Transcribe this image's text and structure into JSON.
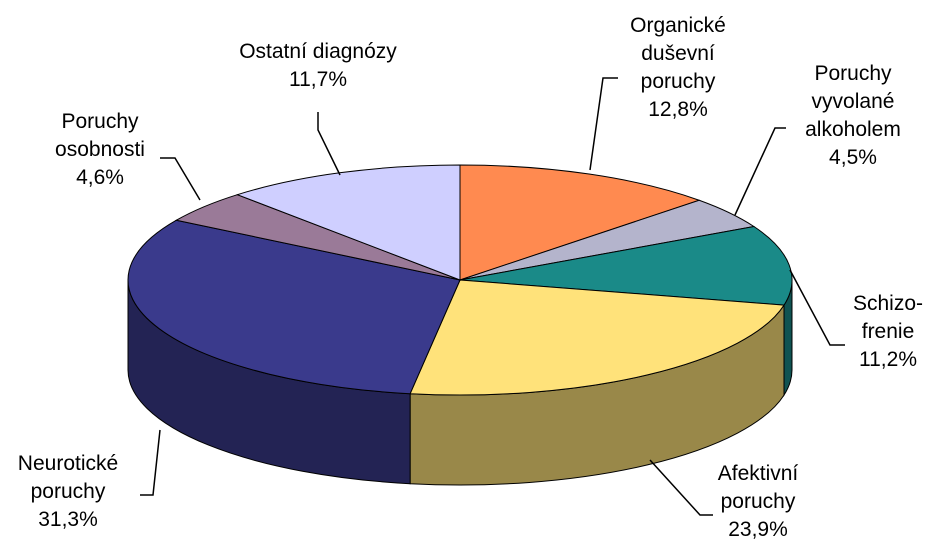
{
  "chart_data": {
    "type": "pie3d",
    "categories": [
      "Organické\nduševní\nporuchy",
      "Poruchy\nvyvolané\nalkoholem",
      "Schizo-\nfrenie",
      "Afektivní\nporuchy",
      "Neurotické\nporuchy",
      "Poruchy\nosobnosti",
      "Ostatní diagnózy"
    ],
    "values": [
      12.8,
      4.5,
      11.2,
      23.9,
      31.3,
      4.6,
      11.7
    ],
    "value_labels": [
      "12,8%",
      "4,5%",
      "11,2%",
      "23,9%",
      "31,3%",
      "4,6%",
      "11,7%"
    ],
    "colors": [
      "#ff8a50",
      "#b4b4cc",
      "#1a8a88",
      "#ffe27a",
      "#3a3a8c",
      "#9a7a98",
      "#cfcfff"
    ]
  }
}
